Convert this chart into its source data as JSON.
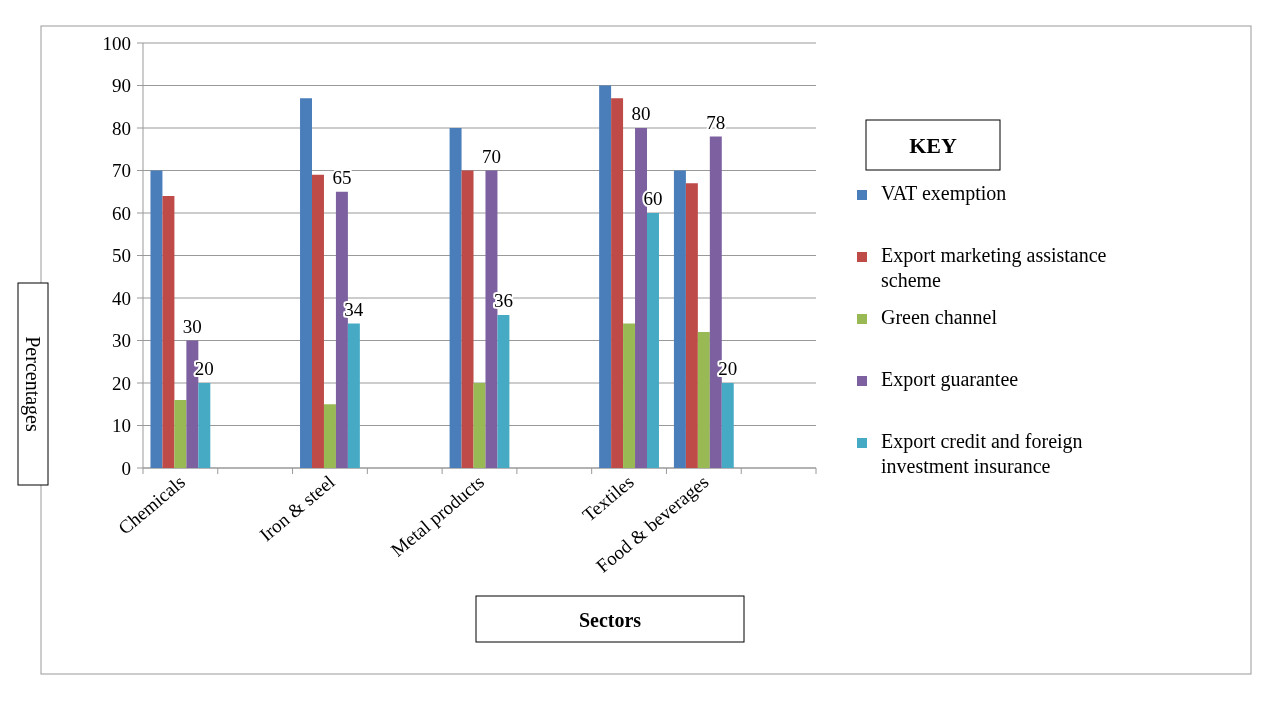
{
  "chart_data": {
    "type": "bar",
    "xlabel": "Sectors",
    "ylabel": "Percentages",
    "legend_title": "KEY",
    "categories": [
      "Chemicals",
      null,
      "Iron & steel",
      null,
      "Metal products",
      null,
      "Textiles",
      "Food & beverages",
      null
    ],
    "series": [
      {
        "name": "VAT exemption",
        "color": "#4a7ebb",
        "values": [
          70,
          null,
          87,
          null,
          80,
          null,
          90,
          70,
          null
        ]
      },
      {
        "name": "Export marketing assistance scheme",
        "color": "#be4b48",
        "values": [
          64,
          null,
          69,
          null,
          70,
          null,
          87,
          67,
          null
        ]
      },
      {
        "name": "Green channel",
        "color": "#98b954",
        "values": [
          16,
          null,
          15,
          null,
          20,
          null,
          34,
          32,
          null
        ]
      },
      {
        "name": "Export guarantee",
        "color": "#7d60a0",
        "values": [
          30,
          null,
          65,
          null,
          70,
          null,
          80,
          78,
          null
        ],
        "value_labels": [
          "30",
          null,
          "65",
          null,
          "70",
          null,
          "80",
          "78",
          null
        ]
      },
      {
        "name": "Export credit and foreign investment insurance",
        "color": "#46aac5",
        "values": [
          20,
          null,
          34,
          null,
          36,
          null,
          60,
          20,
          null
        ],
        "value_labels": [
          "20",
          null,
          "34",
          null,
          "36",
          null,
          "60",
          "20",
          null
        ]
      }
    ],
    "ylim": [
      0,
      100
    ],
    "yticks": [
      0,
      10,
      20,
      30,
      40,
      50,
      60,
      70,
      80,
      90,
      100
    ],
    "grid": "y",
    "legend": "right"
  }
}
